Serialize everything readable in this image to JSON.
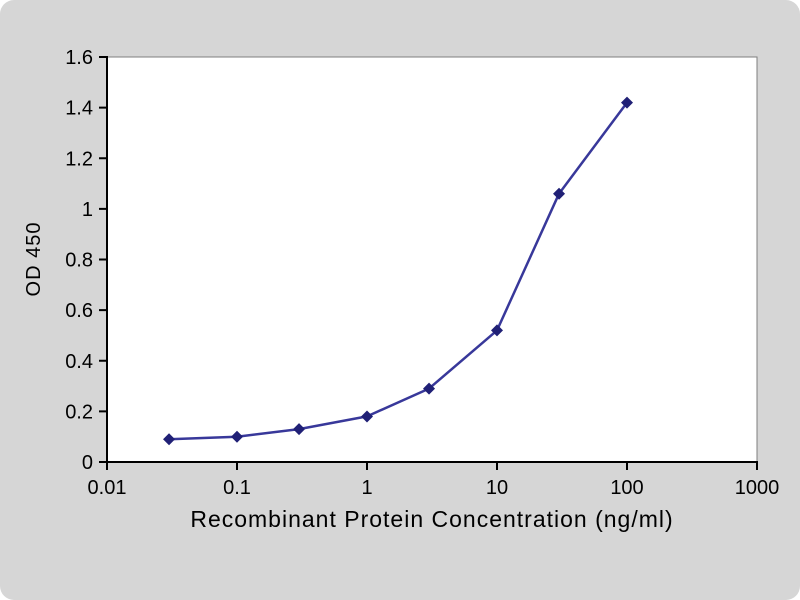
{
  "chart_data": {
    "type": "line",
    "title": "",
    "xlabel": "Recombinant Protein Concentration (ng/ml)",
    "ylabel": "OD 450",
    "x_scale": "log",
    "xlim": [
      0.01,
      1000
    ],
    "ylim": [
      0,
      1.6
    ],
    "x_ticks": [
      "0.01",
      "0.1",
      "1",
      "10",
      "100",
      "1000"
    ],
    "y_ticks": [
      "0",
      "0.2",
      "0.4",
      "0.6",
      "0.8",
      "1",
      "1.2",
      "1.4",
      "1.6"
    ],
    "x": [
      0.03,
      0.1,
      0.3,
      1,
      3,
      10,
      30,
      100
    ],
    "series": [
      {
        "name": "OD 450",
        "values": [
          0.09,
          0.1,
          0.13,
          0.18,
          0.29,
          0.52,
          1.06,
          1.42
        ]
      }
    ],
    "grid": false,
    "legend_position": "none",
    "colors": {
      "line": "#38389a",
      "marker": "#202076",
      "axis": "#000000",
      "frame": "#7f7f7f",
      "plot_bg": "#ffffff",
      "page_bg": "#d6d6d6"
    }
  }
}
